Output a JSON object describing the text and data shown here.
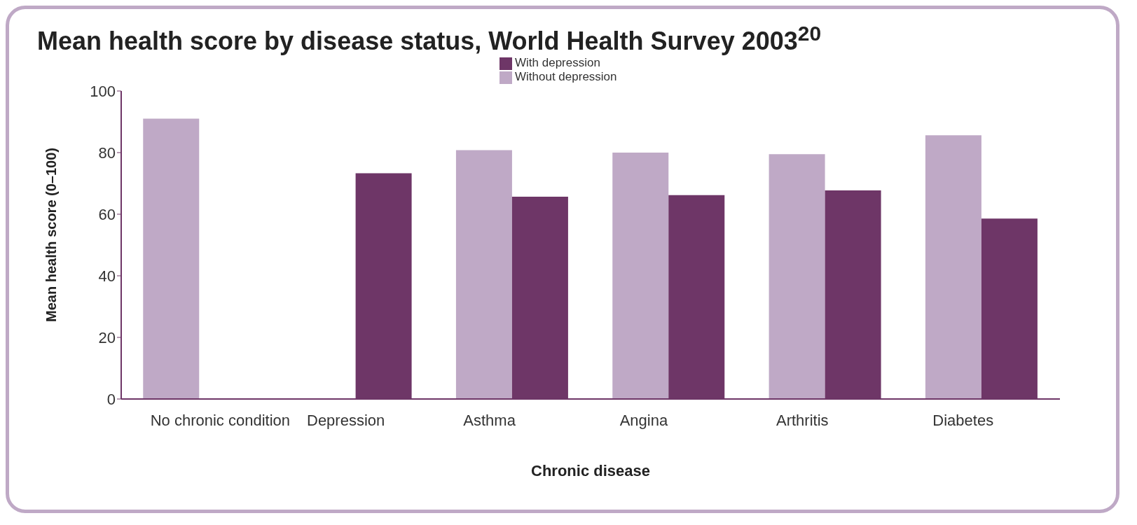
{
  "chart_data": {
    "type": "bar",
    "title": "Mean health score by disease status, World Health Survey 2003$^{20}$",
    "xlabel": "Chronic disease",
    "ylabel": "Mean health score (0–100)",
    "categories": [
      "No chronic condition",
      "Depression",
      "Asthma",
      "Angina",
      "Arthritis",
      "Diabetes"
    ],
    "series": [
      {
        "name": "Without depression",
        "color": "#bfa9c6",
        "values": [
          91,
          null,
          80.8,
          80,
          79.5,
          85.6
        ]
      },
      {
        "name": "With depression",
        "color": "#6e3667",
        "values": [
          null,
          73.3,
          65.7,
          66.2,
          67.7,
          58.6
        ]
      }
    ],
    "ylim": [
      0,
      100
    ],
    "yticks": [
      0,
      20,
      40,
      60,
      80,
      100
    ],
    "grid": false,
    "legend": "top"
  }
}
